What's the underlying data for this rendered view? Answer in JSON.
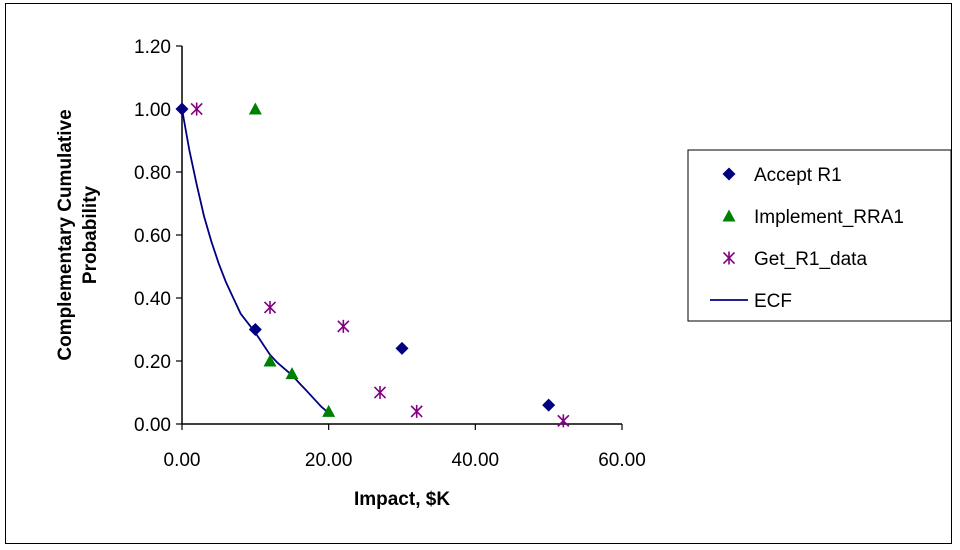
{
  "chart_data": {
    "type": "scatter",
    "title": "",
    "xlabel": "Impact, $K",
    "ylabel_lines": [
      "Complementary Cumulative",
      "Probability"
    ],
    "xlim": [
      0,
      60
    ],
    "ylim": [
      0,
      1.2
    ],
    "x_ticks": [
      "0.00",
      "20.00",
      "40.00",
      "60.00"
    ],
    "y_ticks": [
      "0.00",
      "0.20",
      "0.40",
      "0.60",
      "0.80",
      "1.00",
      "1.20"
    ],
    "grid": false,
    "legend_position": "right",
    "series": [
      {
        "name": "Accept R1",
        "marker": "diamond",
        "color": "#000080",
        "points": [
          [
            0,
            1.0
          ],
          [
            10,
            0.3
          ],
          [
            30,
            0.24
          ],
          [
            50,
            0.06
          ]
        ]
      },
      {
        "name": "Implement_RRA1",
        "marker": "triangle",
        "color": "#008000",
        "points": [
          [
            10,
            1.0
          ],
          [
            12,
            0.2
          ],
          [
            15,
            0.16
          ],
          [
            20,
            0.04
          ]
        ]
      },
      {
        "name": "Get_R1_data",
        "marker": "asterisk",
        "color": "#800080",
        "points": [
          [
            2,
            1.0
          ],
          [
            12,
            0.37
          ],
          [
            22,
            0.31
          ],
          [
            27,
            0.1
          ],
          [
            32,
            0.04
          ],
          [
            52,
            0.01
          ]
        ]
      },
      {
        "name": "ECF",
        "marker": "line",
        "color": "#000080",
        "points": [
          [
            0,
            1.0
          ],
          [
            1,
            0.87
          ],
          [
            2,
            0.76
          ],
          [
            3,
            0.66
          ],
          [
            4,
            0.58
          ],
          [
            5,
            0.51
          ],
          [
            6,
            0.45
          ],
          [
            7,
            0.4
          ],
          [
            8,
            0.35
          ],
          [
            9,
            0.32
          ],
          [
            10,
            0.29
          ],
          [
            11,
            0.255
          ],
          [
            12,
            0.22
          ],
          [
            13,
            0.195
          ],
          [
            14,
            0.175
          ],
          [
            15,
            0.155
          ],
          [
            16,
            0.13
          ],
          [
            17,
            0.105
          ],
          [
            18,
            0.08
          ],
          [
            19,
            0.055
          ],
          [
            20,
            0.035
          ]
        ]
      }
    ]
  }
}
